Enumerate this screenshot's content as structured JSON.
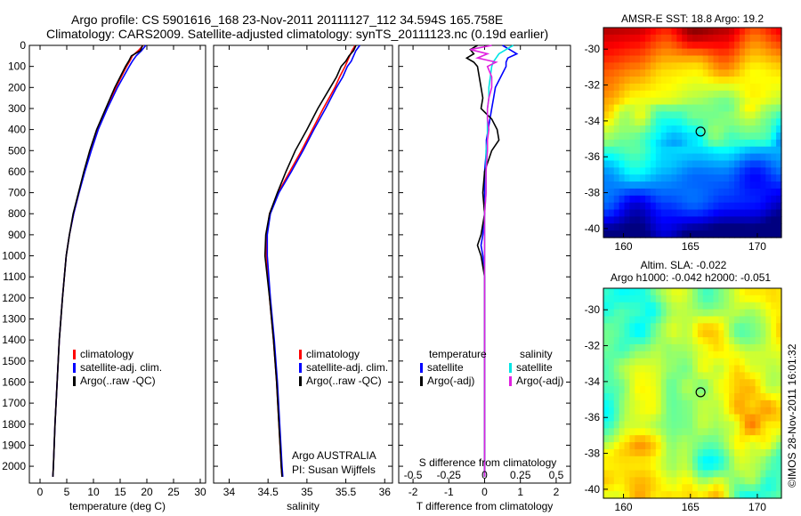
{
  "header": {
    "line1": "Argo profile: CS 5901616_168 23-Nov-2011 20111127_112 34.594S 165.758E",
    "line2": "Climatology: CARS2009. Satellite-adjusted climatology: synTS_20111123.nc (0.19d earlier)"
  },
  "side_stamp": "©IMOS 28-Nov-2011 16:01:32",
  "colors": {
    "climatology": "#ff0000",
    "satellite": "#0000ff",
    "argo": "#000000",
    "salinity_satellite": "#00e5e5",
    "salinity_argo": "#e020e0"
  },
  "chart_data": [
    {
      "type": "line",
      "panel": "temperature",
      "xlabel": "temperature (deg C)",
      "ylabel": "",
      "xlim": [
        -2,
        31
      ],
      "ylim": [
        2080,
        0
      ],
      "xticks": [
        0,
        5,
        10,
        15,
        20,
        25,
        30
      ],
      "yticks": [
        0,
        100,
        200,
        300,
        400,
        500,
        600,
        700,
        800,
        900,
        1000,
        1100,
        1200,
        1300,
        1400,
        1500,
        1600,
        1700,
        1800,
        1900,
        2000
      ],
      "legend": [
        "climatology",
        "satellite-adj. clim.",
        "Argo(..raw -QC)"
      ],
      "depth": [
        0,
        25,
        50,
        75,
        100,
        150,
        200,
        300,
        400,
        500,
        600,
        700,
        800,
        900,
        1000,
        1200,
        1400,
        1600,
        1800,
        2000,
        2050
      ],
      "series": [
        {
          "name": "climatology",
          "values": [
            19.3,
            18.4,
            17.3,
            16.8,
            16.2,
            15.2,
            14.2,
            12.4,
            10.8,
            9.5,
            8.3,
            7.3,
            6.3,
            5.5,
            4.9,
            4.2,
            3.6,
            3.2,
            2.8,
            2.5,
            2.4
          ]
        },
        {
          "name": "satellite-adj. clim.",
          "values": [
            19.8,
            19.0,
            18.0,
            17.3,
            16.7,
            15.6,
            14.5,
            12.6,
            10.9,
            9.6,
            8.4,
            7.3,
            6.3,
            5.5,
            4.9,
            4.2,
            3.6,
            3.2,
            2.8,
            2.5,
            2.4
          ]
        },
        {
          "name": "Argo(..raw -QC)",
          "values": [
            19.2,
            18.8,
            17.1,
            16.6,
            16.0,
            15.0,
            14.0,
            12.3,
            10.6,
            9.3,
            8.2,
            7.2,
            6.2,
            5.5,
            4.9,
            4.2,
            3.6,
            3.2,
            2.8,
            2.5,
            2.4
          ]
        }
      ]
    },
    {
      "type": "line",
      "panel": "salinity",
      "xlabel": "salinity",
      "xlim": [
        33.8,
        36.1
      ],
      "ylim": [
        2080,
        0
      ],
      "xticks": [
        34,
        34.5,
        35,
        35.5,
        36
      ],
      "legend": [
        "climatology",
        "satellite-adj. clim.",
        "Argo(..raw -QC)"
      ],
      "annotation": [
        "Argo AUSTRALIA",
        "PI: Susan Wijffels"
      ],
      "depth": [
        0,
        25,
        50,
        75,
        100,
        150,
        200,
        300,
        400,
        500,
        600,
        700,
        800,
        900,
        1000,
        1200,
        1400,
        1600,
        1800,
        2000,
        2050
      ],
      "series": [
        {
          "name": "climatology",
          "values": [
            35.62,
            35.58,
            35.55,
            35.52,
            35.49,
            35.42,
            35.36,
            35.21,
            35.07,
            34.93,
            34.78,
            34.63,
            34.52,
            34.48,
            34.48,
            34.52,
            34.57,
            34.61,
            34.64,
            34.67,
            34.68
          ]
        },
        {
          "name": "satellite-adj. clim.",
          "values": [
            35.68,
            35.63,
            35.6,
            35.57,
            35.52,
            35.46,
            35.38,
            35.24,
            35.09,
            34.95,
            34.8,
            34.64,
            34.53,
            34.49,
            34.49,
            34.53,
            34.58,
            34.62,
            34.65,
            34.68,
            34.69
          ]
        },
        {
          "name": "Argo(..raw -QC)",
          "values": [
            35.63,
            35.6,
            35.54,
            35.5,
            35.44,
            35.38,
            35.3,
            35.14,
            35.0,
            34.85,
            34.73,
            34.62,
            34.52,
            34.47,
            34.46,
            34.52,
            34.57,
            34.61,
            34.64,
            34.67,
            34.68
          ]
        }
      ]
    },
    {
      "type": "line",
      "panel": "difference",
      "xlabel": "T difference from climatology",
      "top_label": "S difference from climatology",
      "xlim": [
        -2.4,
        2.4
      ],
      "ylim": [
        2080,
        0
      ],
      "xticks": [
        -2,
        -1,
        0,
        1,
        2
      ],
      "top_ticks": [
        "-0.5",
        "-0.25",
        "0",
        "0.25",
        "0.5"
      ],
      "legend_temperature": {
        "title": "temperature",
        "items": [
          "satellite",
          "Argo(-adj)"
        ]
      },
      "legend_salinity": {
        "title": "salinity",
        "items": [
          "satellite",
          "Argo(-adj)"
        ]
      },
      "depth": [
        0,
        20,
        40,
        60,
        80,
        100,
        150,
        200,
        250,
        300,
        350,
        400,
        450,
        500,
        600,
        700,
        800,
        900,
        950,
        1000,
        1100,
        1200,
        1400,
        1600,
        1800,
        2000,
        2050
      ],
      "series": [
        {
          "name": "temperature satellite",
          "values": [
            0.5,
            0.7,
            0.9,
            0.65,
            0.6,
            0.6,
            0.45,
            0.3,
            0.25,
            0.2,
            0.15,
            0.1,
            0.05,
            0.05,
            0,
            0,
            0,
            -0.05,
            -0.1,
            -0.05,
            0,
            0,
            0,
            0,
            0,
            0,
            0
          ]
        },
        {
          "name": "temperature Argo(-adj)",
          "values": [
            -0.2,
            -0.4,
            -0.3,
            -0.5,
            -0.3,
            -0.2,
            -0.15,
            -0.1,
            -0.05,
            -0.1,
            0.2,
            0.35,
            0.4,
            0.2,
            0,
            -0.05,
            0,
            -0.1,
            -0.2,
            -0.1,
            0,
            0,
            0,
            0,
            0,
            0,
            0
          ]
        },
        {
          "name": "salinity satellite",
          "values": [
            0.2,
            0.15,
            0.1,
            0.08,
            0.06,
            0.05,
            0.04,
            0.03,
            0.03,
            0.02,
            0.02,
            0.02,
            0.02,
            0.01,
            0.01,
            0.01,
            0,
            0,
            0,
            0,
            0,
            0,
            0,
            0,
            0,
            0,
            0
          ]
        },
        {
          "name": "salinity Argo(-adj)",
          "values": [
            0.05,
            -0.1,
            0.02,
            -0.05,
            0.08,
            0.02,
            0.05,
            0.05,
            0.03,
            0.02,
            0.02,
            0.03,
            0.02,
            0.02,
            0.01,
            0.01,
            0,
            0,
            0,
            0,
            0,
            0,
            0,
            0,
            0,
            0,
            0
          ]
        }
      ]
    },
    {
      "type": "heatmap",
      "panel": "sst-map",
      "title": "AMSR-E SST: 18.8 Argo: 19.2",
      "xticks": [
        160,
        165,
        170
      ],
      "yticks": [
        -30,
        -32,
        -34,
        -36,
        -38,
        -40
      ],
      "xlim": [
        158.5,
        171.8
      ],
      "ylim": [
        -40.5,
        -28.8
      ],
      "marker": {
        "lon": 165.758,
        "lat": -34.594
      }
    },
    {
      "type": "heatmap",
      "panel": "sla-map",
      "title": "Altim. SLA: -0.022",
      "subtitle": "Argo h1000: -0.042 h2000: -0.051",
      "xticks": [
        160,
        165,
        170
      ],
      "yticks": [
        -30,
        -32,
        -34,
        -36,
        -38,
        -40
      ],
      "xlim": [
        158.5,
        171.8
      ],
      "ylim": [
        -40.5,
        -28.8
      ],
      "marker": {
        "lon": 165.758,
        "lat": -34.594
      }
    }
  ]
}
